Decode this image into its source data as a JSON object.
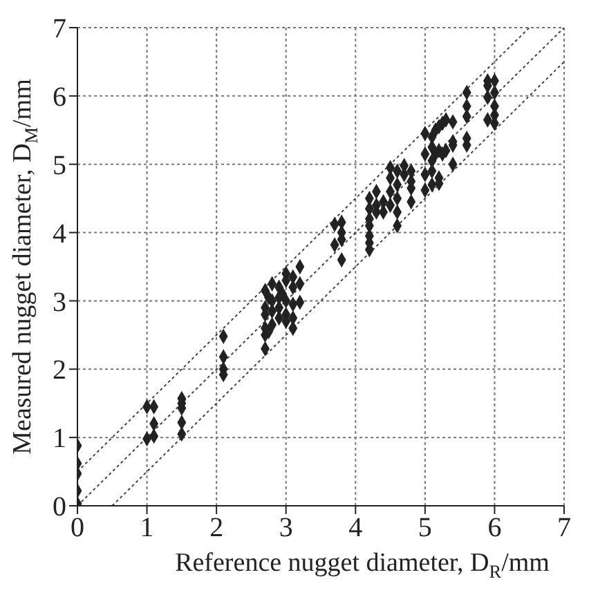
{
  "chart_data": {
    "type": "scatter",
    "xlabel": "Reference nugget diameter, D$_{R}$/mm",
    "ylabel": "Measured nugget diameter, D$_{M}$/mm",
    "xlim": [
      0,
      7
    ],
    "ylim": [
      0,
      7
    ],
    "xticks": [
      0,
      1,
      2,
      3,
      4,
      5,
      6,
      7
    ],
    "yticks": [
      0,
      1,
      2,
      3,
      4,
      5,
      6,
      7
    ],
    "grid": true,
    "series": [
      {
        "color": "#222222",
        "marker": "diamond",
        "x": [
          0,
          0,
          0,
          0,
          0,
          1,
          1,
          1.1,
          1.1,
          1.1,
          1.5,
          1.5,
          1.5,
          1.5,
          1.5,
          2.1,
          2.1,
          2.1,
          2.1,
          2.7,
          2.7,
          2.7,
          2.7,
          2.7,
          2.7,
          2.75,
          2.75,
          2.8,
          2.8,
          2.8,
          2.8,
          2.9,
          2.9,
          2.9,
          2.9,
          2.95,
          3,
          3,
          3,
          3,
          3,
          3.1,
          3.1,
          3.1,
          3.1,
          3.1,
          3.2,
          3.2,
          3.2,
          3.7,
          3.7,
          3.8,
          3.8,
          3.8,
          3.8,
          4.2,
          4.2,
          4.2,
          4.2,
          4.2,
          4.2,
          4.2,
          4.3,
          4.3,
          4.3,
          4.4,
          4.4,
          4.5,
          4.5,
          4.5,
          4.5,
          4.6,
          4.6,
          4.6,
          4.6,
          4.6,
          4.7,
          4.7,
          4.8,
          4.8,
          4.8,
          4.8,
          5,
          5,
          5,
          5,
          5.1,
          5.1,
          5.1,
          5.1,
          5.1,
          5.15,
          5.15,
          5.2,
          5.2,
          5.2,
          5.2,
          5.25,
          5.25,
          5.3,
          5.3,
          5.4,
          5.4,
          5.4,
          5.4,
          5.6,
          5.6,
          5.6,
          5.6,
          5.6,
          5.9,
          5.9,
          5.9,
          5.9,
          6,
          6,
          6,
          6,
          6
        ],
        "values": [
          0.88,
          0.62,
          0.47,
          0.22,
          0.03,
          1.45,
          0.98,
          1.45,
          1.2,
          1.02,
          1.57,
          1.43,
          1.22,
          1.05,
          1.5,
          2.48,
          2.18,
          2,
          1.92,
          3.15,
          2.9,
          2.8,
          2.6,
          2.5,
          2.3,
          3.05,
          2.55,
          3.25,
          3,
          2.85,
          2.65,
          3.2,
          3.05,
          2.9,
          2.75,
          3.1,
          3.4,
          3.3,
          3,
          2.8,
          2.7,
          3.35,
          3.2,
          2.95,
          2.75,
          2.6,
          3.5,
          3.25,
          2.98,
          4.12,
          3.82,
          4.15,
          4,
          3.9,
          3.6,
          4.5,
          4.35,
          4.2,
          4.1,
          3.95,
          3.85,
          3.75,
          4.6,
          4.4,
          4.3,
          4.45,
          4.3,
          4.95,
          4.8,
          4.6,
          4.4,
          4.9,
          4.7,
          4.5,
          4.3,
          4.1,
          4.98,
          4.85,
          4.9,
          4.75,
          4.65,
          4.45,
          5.45,
          5.15,
          4.85,
          4.62,
          5.4,
          5.25,
          5.05,
          4.9,
          4.7,
          5.5,
          5.15,
          5.55,
          5.2,
          4.8,
          4.72,
          5.6,
          5.15,
          5.65,
          5.2,
          5.62,
          5.33,
          5.28,
          5,
          6.05,
          5.85,
          5.7,
          5.38,
          5.28,
          6.22,
          6.15,
          5.98,
          5.65,
          6.22,
          6.05,
          5.85,
          5.72,
          5.6
        ]
      },
      {
        "type": "line",
        "color": "#444444",
        "line_style": "dotted",
        "x": [
          0,
          7
        ],
        "values": [
          0,
          7
        ]
      },
      {
        "type": "line",
        "color": "#444444",
        "line_style": "dotted",
        "x": [
          0,
          6.5
        ],
        "values": [
          0.5,
          7
        ]
      },
      {
        "type": "line",
        "color": "#444444",
        "line_style": "dotted",
        "x": [
          0.5,
          7
        ],
        "values": [
          0,
          6.5
        ]
      }
    ]
  }
}
